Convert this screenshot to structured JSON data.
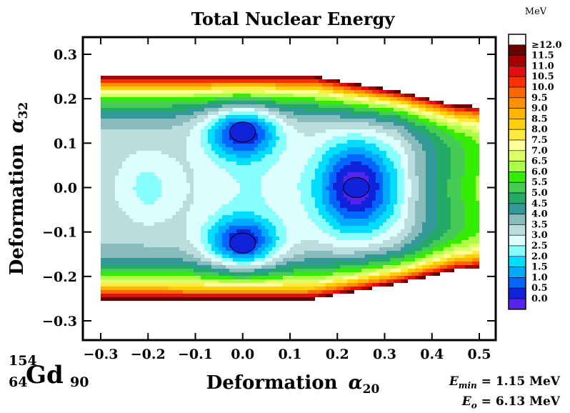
{
  "chart_data": {
    "type": "heatmap",
    "title": "Total Nuclear Energy",
    "xlabel": "Deformation α20",
    "xlabel_text": "Deformation",
    "xlabel_symbol": "α",
    "xlabel_sub": "20",
    "ylabel": "Deformation α32",
    "ylabel_text": "Deformation",
    "ylabel_symbol": "α",
    "ylabel_sub": "32",
    "xlim": [
      -0.3,
      0.5
    ],
    "ylim": [
      -0.3,
      0.3
    ],
    "xticks": [
      "−0.3",
      "−0.2",
      "−0.1",
      "0.0",
      "0.1",
      "0.2",
      "0.3",
      "0.4",
      "0.5"
    ],
    "xtick_values": [
      -0.3,
      -0.2,
      -0.1,
      0.0,
      0.1,
      0.2,
      0.3,
      0.4,
      0.5
    ],
    "yticks": [
      "0.3",
      "0.2",
      "0.1",
      "0.0",
      "−0.1",
      "−0.2",
      "−0.3"
    ],
    "ytick_values": [
      0.3,
      0.2,
      0.1,
      0.0,
      -0.1,
      -0.2,
      -0.3
    ],
    "colorbar": {
      "unit": "MeV",
      "levels": [
        "≥12.0",
        "11.5",
        "11.0",
        "10.5",
        "10.0",
        "9.5",
        "9.0",
        "8.5",
        "8.0",
        "7.5",
        "7.0",
        "6.5",
        "6.0",
        "5.5",
        "5.0",
        "4.5",
        "4.0",
        "3.5",
        "3.0",
        "2.5",
        "2.0",
        "1.5",
        "1.0",
        "0.5",
        "0.0"
      ],
      "colors": [
        "#ffffff",
        "#6b0000",
        "#a80000",
        "#e01010",
        "#ff3000",
        "#ff6600",
        "#ff9000",
        "#ffb400",
        "#ffd000",
        "#ffea40",
        "#ffff99",
        "#ddff66",
        "#aaff44",
        "#33ee00",
        "#44cc55",
        "#22aa66",
        "#339999",
        "#88bbbb",
        "#bbdddd",
        "#ddffff",
        "#88ffff",
        "#00ddff",
        "#00aaff",
        "#0066ff",
        "#1122dd",
        "#5522ee"
      ]
    },
    "minima": [
      {
        "x": 0.0,
        "y": 0.125,
        "energy": 0.0
      },
      {
        "x": 0.0,
        "y": -0.125,
        "energy": 0.0
      },
      {
        "x": 0.24,
        "y": 0.0,
        "energy": 0.0
      }
    ]
  },
  "nucleus": {
    "A": "154",
    "Z": "64",
    "symbol": "Gd",
    "N": "90"
  },
  "annotations": {
    "emin_label": "E",
    "emin_sub": "min",
    "emin_value": " = 1.15 MeV",
    "eo_label": "E",
    "eo_sub": "o",
    "eo_value": " = 6.13 MeV"
  }
}
